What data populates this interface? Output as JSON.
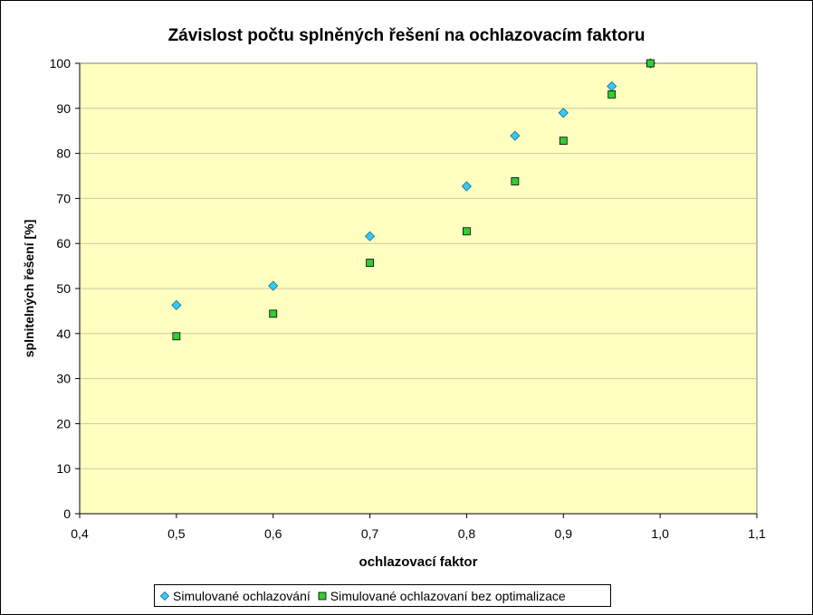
{
  "chart_data": {
    "type": "scatter",
    "title": "Závislost počtu splněných řešení na ochlazovacím faktoru",
    "xlabel": "ochlazovací faktor",
    "ylabel": "splnitelných řešení [%]",
    "xlim": [
      0.4,
      1.1
    ],
    "ylim": [
      0,
      100
    ],
    "xticks": [
      0.4,
      0.5,
      0.6,
      0.7,
      0.8,
      0.9,
      1.0,
      1.1
    ],
    "xtick_labels": [
      "0,4",
      "0,5",
      "0,6",
      "0,7",
      "0,8",
      "0,9",
      "1,0",
      "1,1"
    ],
    "yticks": [
      0,
      10,
      20,
      30,
      40,
      50,
      60,
      70,
      80,
      90,
      100
    ],
    "ytick_labels": [
      "0",
      "10",
      "20",
      "30",
      "40",
      "50",
      "60",
      "70",
      "80",
      "90",
      "100"
    ],
    "grid": "horizontal",
    "legend_position": "bottom",
    "plot_background": "#ffffc0",
    "series": [
      {
        "name": "Simulované ochlazování",
        "marker": "diamond",
        "color": "#33ccff",
        "points": [
          {
            "x": 0.5,
            "y": 46.3
          },
          {
            "x": 0.6,
            "y": 50.6
          },
          {
            "x": 0.7,
            "y": 61.6
          },
          {
            "x": 0.8,
            "y": 72.7
          },
          {
            "x": 0.85,
            "y": 83.9
          },
          {
            "x": 0.9,
            "y": 89.0
          },
          {
            "x": 0.95,
            "y": 94.9
          },
          {
            "x": 0.99,
            "y": 100.0
          }
        ]
      },
      {
        "name": "Simulované ochlazovaní bez optimalizace",
        "marker": "square",
        "color": "#33cc33",
        "points": [
          {
            "x": 0.5,
            "y": 39.4
          },
          {
            "x": 0.6,
            "y": 44.4
          },
          {
            "x": 0.7,
            "y": 55.7
          },
          {
            "x": 0.8,
            "y": 62.7
          },
          {
            "x": 0.85,
            "y": 73.8
          },
          {
            "x": 0.9,
            "y": 82.8
          },
          {
            "x": 0.95,
            "y": 93.1
          },
          {
            "x": 0.99,
            "y": 100.0
          }
        ]
      }
    ]
  }
}
